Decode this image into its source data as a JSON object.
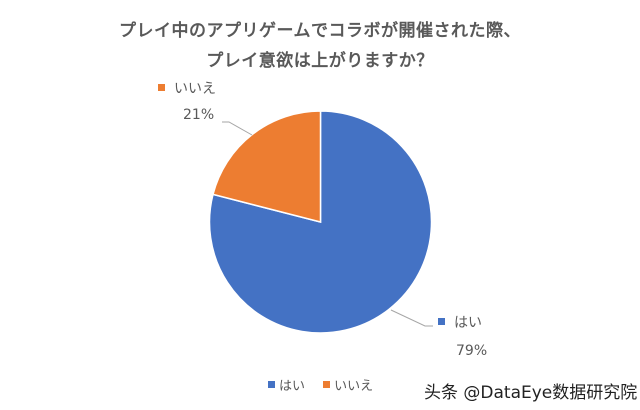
{
  "chart_data": {
    "type": "pie",
    "title": "プレイ中のアプリゲームでコラボが開催された際、プレイ意欲は上がりますか？",
    "title_lines": [
      "プレイ中のアプリゲームでコラボが開催された際、",
      "プレイ意欲は上がりますか？"
    ],
    "categories": [
      "はい",
      "いいえ"
    ],
    "values": [
      79,
      21
    ],
    "value_labels": [
      "79%",
      "21%"
    ],
    "colors": [
      "#4472C4",
      "#ED7D31"
    ],
    "start_angle": "12 o'clock",
    "legend_position": "bottom",
    "legend": [
      "はい",
      "いいえ"
    ]
  },
  "labels": {
    "yes": {
      "name": "はい",
      "pct": "79%"
    },
    "no": {
      "name": "いいえ",
      "pct": "21%"
    }
  },
  "legend": {
    "items": [
      {
        "label": "はい",
        "color": "#4472C4"
      },
      {
        "label": "いいえ",
        "color": "#ED7D31"
      }
    ]
  },
  "watermark": "头条 @DataEye数据研究院"
}
